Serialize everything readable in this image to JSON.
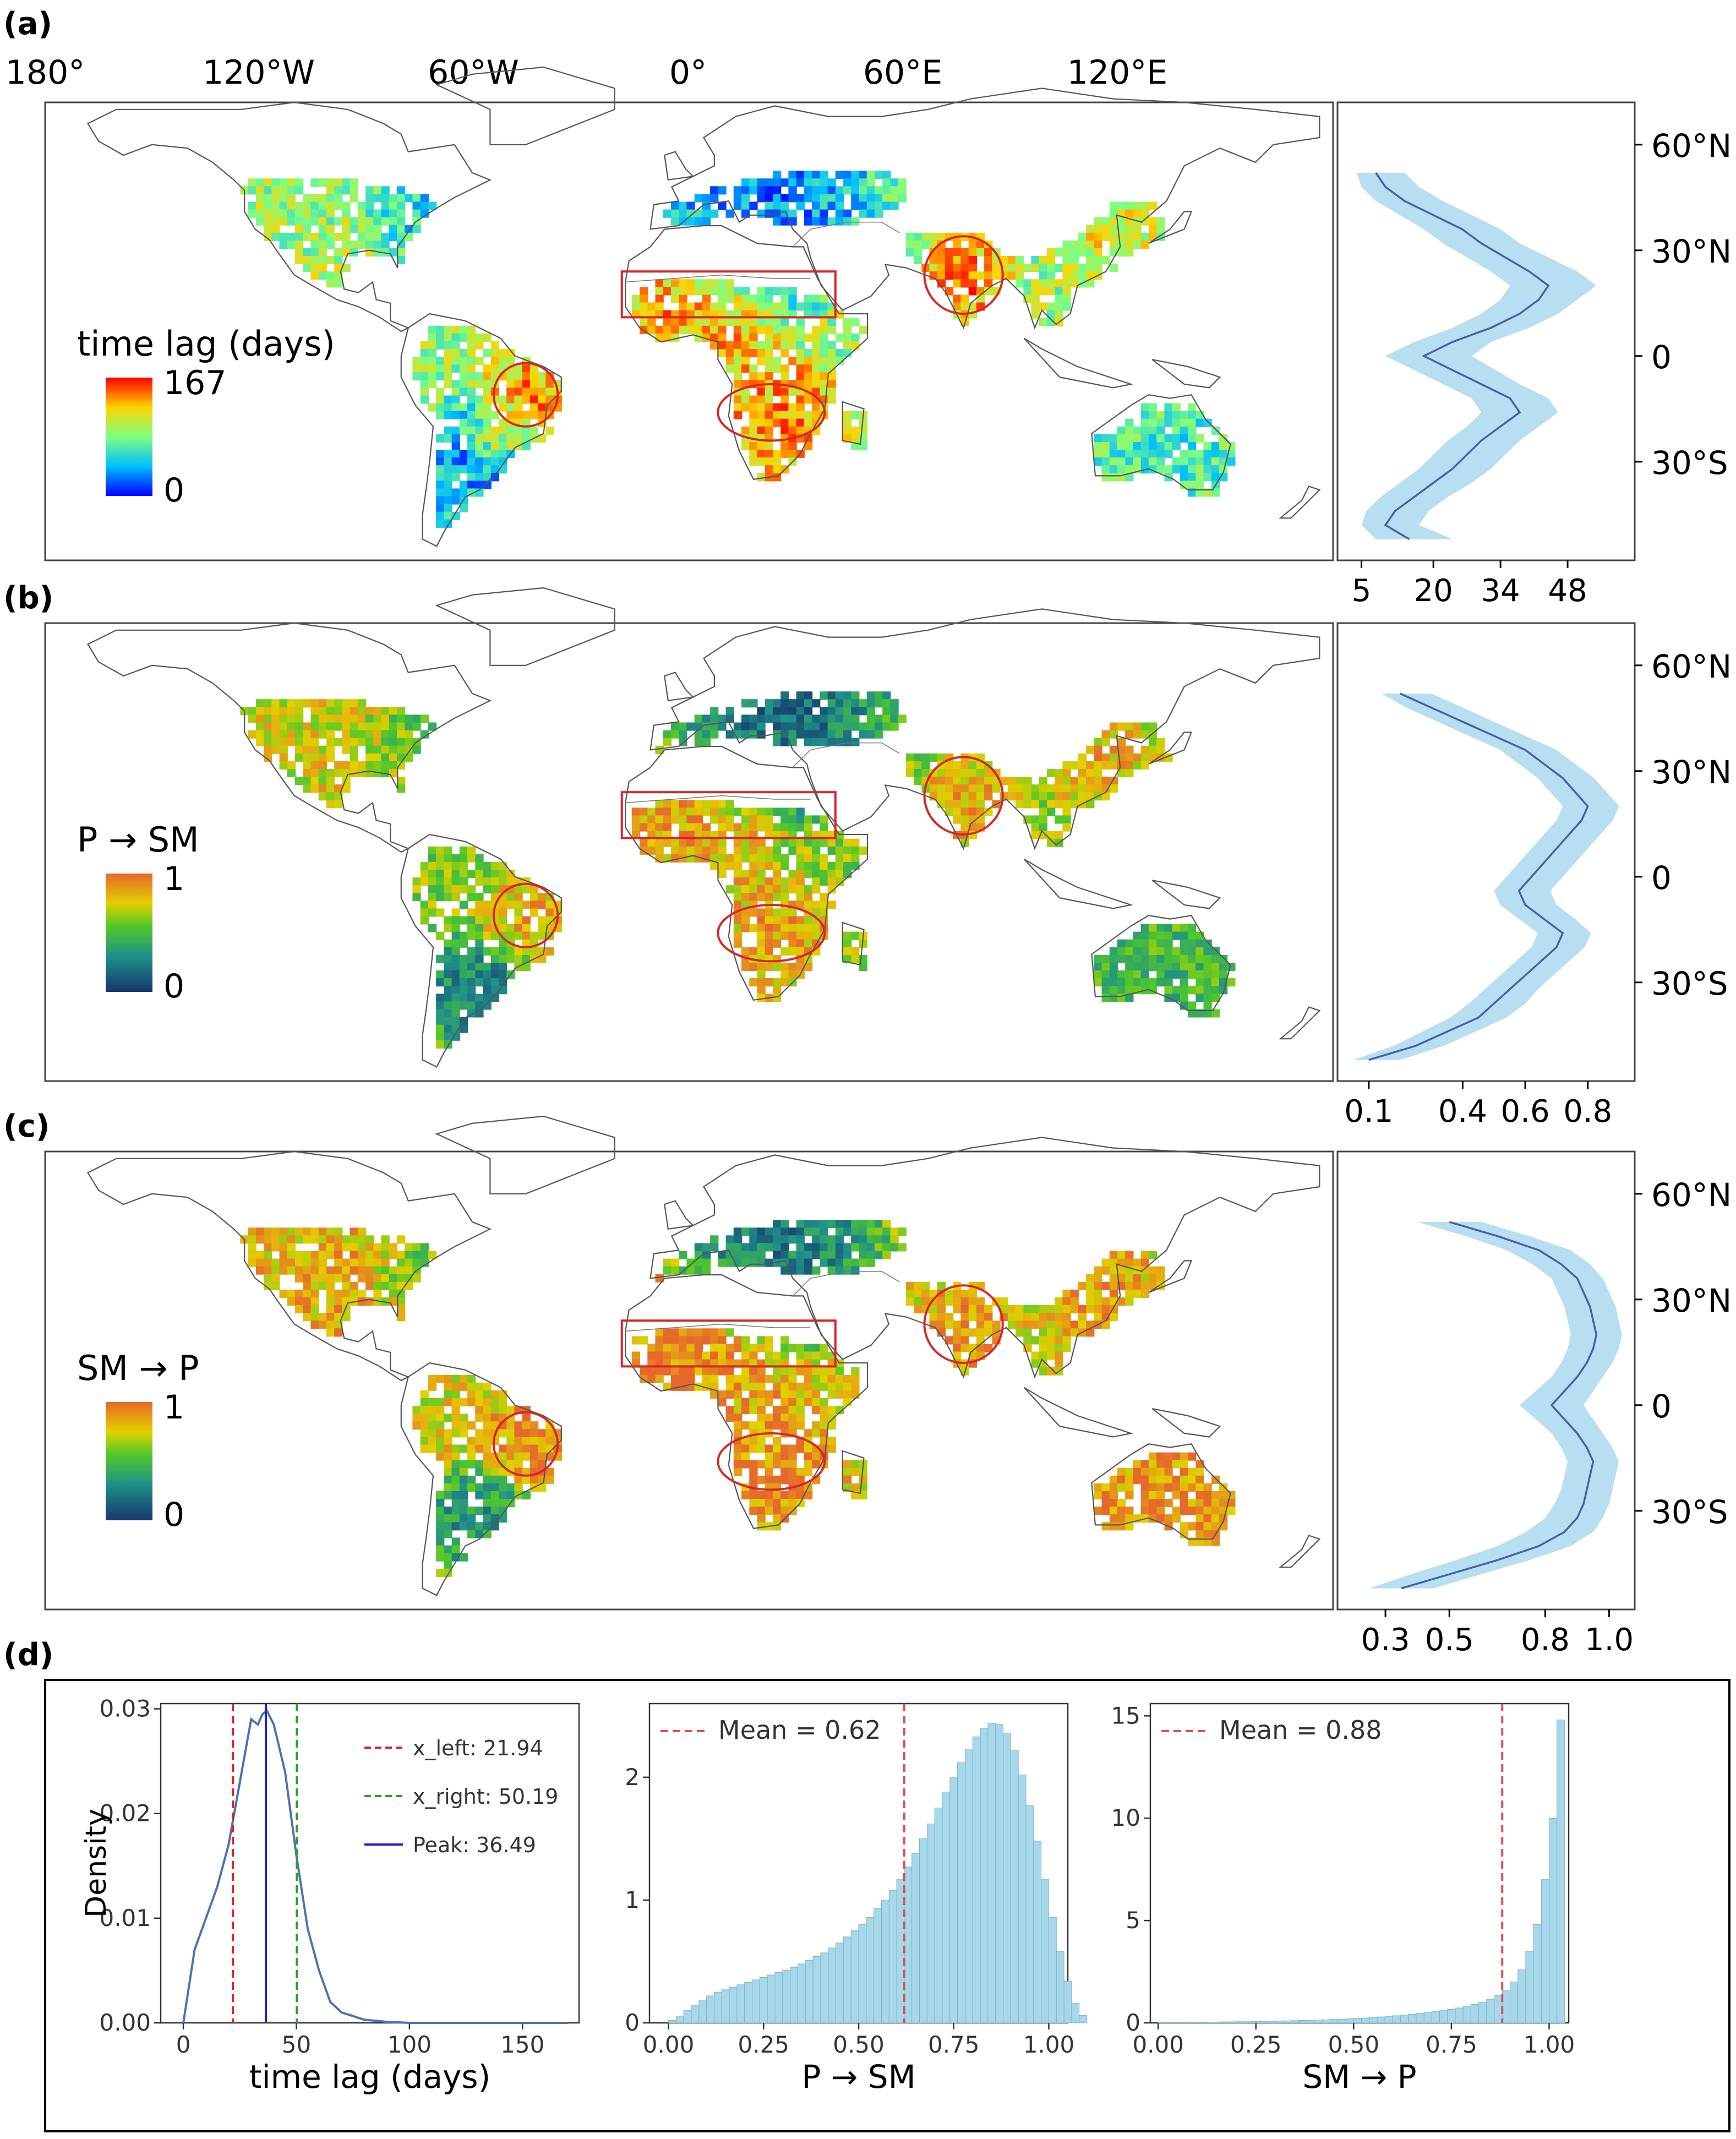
{
  "panel_labels": [
    "(a)",
    "(b)",
    "(c)",
    "(d)"
  ],
  "top_lon_ticks": [
    "180°",
    "120°W",
    "60°W",
    "0°",
    "60°E",
    "120°E"
  ],
  "lat_ticks": [
    "60°N",
    "30°N",
    "0",
    "30°S"
  ],
  "colors": {
    "map_border": "#444444",
    "highlight": "#d62728",
    "profile_fill": "#aad8ef",
    "profile_line": "#4a5fa8",
    "hist_fill": "#a6d8ea",
    "hist_edge": "#7fb3c8",
    "kde_line": "#4c72b0",
    "x_left": "#d62728",
    "x_right": "#2ca02c",
    "peak": "#1f1fcc",
    "mean": "#d9534f"
  },
  "chart_data": [
    {
      "type": "heatmap",
      "panel": "(a)",
      "colorbar_title": "time lag (days)",
      "colorbar_max_label": "167",
      "colorbar_min_label": "0",
      "colormap": "jet",
      "profile": {
        "type": "line",
        "x_ticks": [
          "5",
          "20",
          "34",
          "48"
        ],
        "xlim": [
          0,
          62
        ],
        "lat": [
          -52,
          -48,
          -44,
          -40,
          -36,
          -32,
          -28,
          -24,
          -20,
          -16,
          -12,
          -8,
          -4,
          0,
          4,
          8,
          12,
          16,
          20,
          24,
          28,
          32,
          36,
          40,
          44,
          48,
          52
        ],
        "mean": [
          15,
          10,
          12,
          16,
          20,
          24,
          27,
          30,
          34,
          38,
          36,
          30,
          24,
          18,
          24,
          32,
          38,
          42,
          44,
          40,
          35,
          30,
          26,
          20,
          14,
          10,
          8
        ],
        "lower": [
          8,
          5,
          6,
          9,
          13,
          17,
          20,
          23,
          27,
          30,
          28,
          22,
          16,
          10,
          16,
          24,
          30,
          34,
          36,
          32,
          27,
          22,
          18,
          13,
          8,
          5,
          4
        ],
        "upper": [
          24,
          17,
          19,
          23,
          28,
          32,
          35,
          38,
          42,
          46,
          44,
          38,
          33,
          28,
          32,
          40,
          46,
          50,
          54,
          50,
          44,
          38,
          34,
          28,
          22,
          17,
          14
        ]
      }
    },
    {
      "type": "heatmap",
      "panel": "(b)",
      "colorbar_title": "P → SM",
      "colorbar_max_label": "1",
      "colorbar_min_label": "0",
      "colormap": "viridis-to-orange",
      "profile": {
        "type": "line",
        "x_ticks": [
          "0.1",
          "0.4",
          "0.6",
          "0.8"
        ],
        "xlim": [
          0,
          0.95
        ],
        "lat": [
          -52,
          -48,
          -44,
          -40,
          -36,
          -32,
          -28,
          -24,
          -20,
          -16,
          -12,
          -8,
          -4,
          0,
          4,
          8,
          12,
          16,
          20,
          24,
          28,
          32,
          36,
          40,
          44,
          48,
          52
        ],
        "mean": [
          0.1,
          0.25,
          0.35,
          0.45,
          0.5,
          0.55,
          0.6,
          0.65,
          0.7,
          0.72,
          0.66,
          0.6,
          0.58,
          0.62,
          0.66,
          0.7,
          0.74,
          0.78,
          0.8,
          0.76,
          0.72,
          0.66,
          0.6,
          0.5,
          0.4,
          0.3,
          0.2
        ],
        "lower": [
          0.05,
          0.18,
          0.27,
          0.36,
          0.42,
          0.47,
          0.52,
          0.57,
          0.62,
          0.64,
          0.58,
          0.52,
          0.5,
          0.54,
          0.58,
          0.62,
          0.66,
          0.7,
          0.72,
          0.68,
          0.64,
          0.58,
          0.52,
          0.42,
          0.32,
          0.22,
          0.14
        ],
        "upper": [
          0.2,
          0.34,
          0.44,
          0.54,
          0.6,
          0.64,
          0.69,
          0.74,
          0.79,
          0.81,
          0.76,
          0.7,
          0.68,
          0.72,
          0.76,
          0.8,
          0.84,
          0.88,
          0.9,
          0.86,
          0.82,
          0.76,
          0.7,
          0.6,
          0.5,
          0.4,
          0.3
        ]
      }
    },
    {
      "type": "heatmap",
      "panel": "(c)",
      "colorbar_title": "SM → P",
      "colorbar_max_label": "1",
      "colorbar_min_label": "0",
      "colormap": "viridis-to-orange",
      "profile": {
        "type": "line",
        "x_ticks": [
          "0.3",
          "0.5",
          "0.8",
          "1.0"
        ],
        "xlim": [
          0.15,
          1.08
        ],
        "lat": [
          -52,
          -48,
          -44,
          -40,
          -36,
          -32,
          -28,
          -24,
          -20,
          -16,
          -12,
          -8,
          -4,
          0,
          4,
          8,
          12,
          16,
          20,
          24,
          28,
          32,
          36,
          40,
          44,
          48,
          52
        ],
        "mean": [
          0.35,
          0.5,
          0.65,
          0.78,
          0.86,
          0.9,
          0.92,
          0.93,
          0.94,
          0.95,
          0.93,
          0.9,
          0.86,
          0.82,
          0.86,
          0.9,
          0.93,
          0.95,
          0.96,
          0.95,
          0.94,
          0.92,
          0.9,
          0.85,
          0.78,
          0.65,
          0.5
        ],
        "lower": [
          0.25,
          0.38,
          0.52,
          0.65,
          0.74,
          0.8,
          0.83,
          0.85,
          0.86,
          0.87,
          0.85,
          0.82,
          0.77,
          0.72,
          0.77,
          0.82,
          0.85,
          0.87,
          0.88,
          0.87,
          0.86,
          0.84,
          0.82,
          0.76,
          0.68,
          0.55,
          0.4
        ],
        "upper": [
          0.45,
          0.6,
          0.75,
          0.88,
          0.95,
          0.98,
          1.0,
          1.01,
          1.02,
          1.03,
          1.01,
          0.98,
          0.95,
          0.92,
          0.95,
          0.98,
          1.01,
          1.03,
          1.04,
          1.03,
          1.02,
          1.0,
          0.98,
          0.94,
          0.88,
          0.75,
          0.6
        ]
      }
    },
    {
      "type": "line",
      "panel": "(d)-1",
      "xlabel": "time lag (days)",
      "ylabel": "Density",
      "xlim": [
        -10,
        175
      ],
      "ylim": [
        0,
        0.0305
      ],
      "x_ticks": [
        0,
        50,
        100,
        150
      ],
      "y_ticks": [
        "0.00",
        "0.01",
        "0.02",
        "0.03"
      ],
      "x": [
        0,
        5,
        10,
        15,
        20,
        25,
        30,
        33,
        35,
        37,
        40,
        45,
        50,
        55,
        60,
        65,
        70,
        80,
        90,
        100,
        120,
        150,
        170
      ],
      "y": [
        0.0,
        0.007,
        0.01,
        0.013,
        0.017,
        0.023,
        0.029,
        0.0285,
        0.0295,
        0.0298,
        0.0285,
        0.024,
        0.016,
        0.009,
        0.005,
        0.002,
        0.001,
        0.0003,
        0.0001,
        0.0,
        0.0,
        0.0,
        0.0
      ],
      "vlines": [
        {
          "label": "x_left: 21.94",
          "x": 21.94,
          "style": "dashed",
          "color_key": "x_left"
        },
        {
          "label": "x_right: 50.19",
          "x": 50.19,
          "style": "dashed",
          "color_key": "x_right"
        },
        {
          "label": "Peak: 36.49",
          "x": 36.49,
          "style": "solid",
          "color_key": "peak"
        }
      ],
      "legend": "top-right"
    },
    {
      "type": "bar",
      "panel": "(d)-2",
      "xlabel": "P → SM",
      "ylabel": "",
      "xlim": [
        -0.05,
        1.05
      ],
      "ylim": [
        0,
        2.6
      ],
      "x_ticks": [
        "0.00",
        "0.25",
        "0.50",
        "0.75",
        "1.00"
      ],
      "y_ticks": [
        "0",
        "1",
        "2"
      ],
      "bin_start": 0.0,
      "bin_width": 0.02,
      "values": [
        0.02,
        0.05,
        0.1,
        0.14,
        0.18,
        0.22,
        0.25,
        0.27,
        0.29,
        0.31,
        0.33,
        0.35,
        0.37,
        0.39,
        0.41,
        0.43,
        0.45,
        0.48,
        0.51,
        0.54,
        0.57,
        0.61,
        0.65,
        0.7,
        0.75,
        0.8,
        0.86,
        0.93,
        1.0,
        1.08,
        1.17,
        1.27,
        1.38,
        1.5,
        1.62,
        1.75,
        1.88,
        2.0,
        2.12,
        2.23,
        2.33,
        2.4,
        2.44,
        2.43,
        2.36,
        2.22,
        2.02,
        1.77,
        1.48,
        1.17,
        0.86,
        0.58,
        0.34,
        0.16,
        0.06
      ],
      "mean_line": {
        "label": "Mean = 0.62",
        "x": 0.62
      },
      "legend": "top-left"
    },
    {
      "type": "bar",
      "panel": "(d)-3",
      "xlabel": "SM → P",
      "ylabel": "",
      "xlim": [
        -0.02,
        1.05
      ],
      "ylim": [
        0,
        15.6
      ],
      "x_ticks": [
        "0.00",
        "0.25",
        "0.50",
        "0.75",
        "1.00"
      ],
      "y_ticks": [
        "0",
        "5",
        "10",
        "15"
      ],
      "bin_start": 0.0,
      "bin_width": 0.02,
      "values": [
        0.02,
        0.02,
        0.02,
        0.03,
        0.03,
        0.03,
        0.04,
        0.04,
        0.05,
        0.05,
        0.06,
        0.06,
        0.07,
        0.07,
        0.08,
        0.09,
        0.1,
        0.11,
        0.12,
        0.13,
        0.14,
        0.15,
        0.17,
        0.18,
        0.2,
        0.22,
        0.24,
        0.26,
        0.29,
        0.32,
        0.35,
        0.38,
        0.42,
        0.46,
        0.5,
        0.55,
        0.6,
        0.66,
        0.73,
        0.81,
        0.9,
        1.0,
        1.15,
        1.35,
        1.6,
        2.0,
        2.6,
        3.5,
        4.8,
        7.0,
        10.0,
        14.8
      ],
      "mean_line": {
        "label": "Mean = 0.88",
        "x": 0.88
      },
      "legend": "top-left"
    }
  ]
}
